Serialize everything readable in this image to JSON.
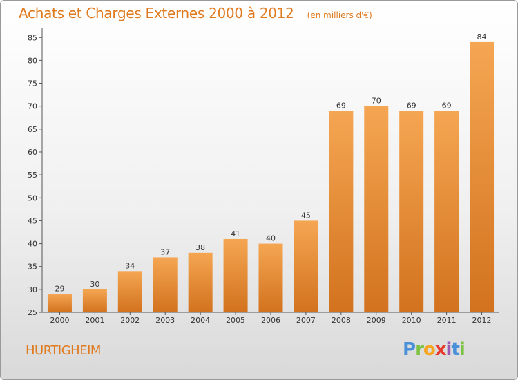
{
  "title": "Achats et Charges Externes 2000 à 2012",
  "subtitle": "(en milliers d'€)",
  "city": "HURTIGHEIM",
  "logo": {
    "text": "Proxiti",
    "letters": [
      "P",
      "r",
      "o",
      "x",
      "i",
      "t",
      "i"
    ]
  },
  "colors": {
    "bar_top": "#f5a652",
    "bar_bottom": "#d2721e",
    "accent": "#e07a1f"
  },
  "chart_data": {
    "type": "bar",
    "title": "Achats et Charges Externes 2000 à 2012",
    "subtitle": "(en milliers d'€)",
    "xlabel": "",
    "ylabel": "",
    "categories": [
      "2000",
      "2001",
      "2002",
      "2003",
      "2004",
      "2005",
      "2006",
      "2007",
      "2008",
      "2009",
      "2010",
      "2011",
      "2012"
    ],
    "values": [
      29,
      30,
      34,
      37,
      38,
      41,
      40,
      45,
      69,
      70,
      69,
      69,
      84
    ],
    "ylim": [
      25,
      87
    ],
    "yticks": [
      25,
      30,
      35,
      40,
      45,
      50,
      55,
      60,
      65,
      70,
      75,
      80,
      85
    ],
    "grid": false,
    "legend": "none"
  }
}
